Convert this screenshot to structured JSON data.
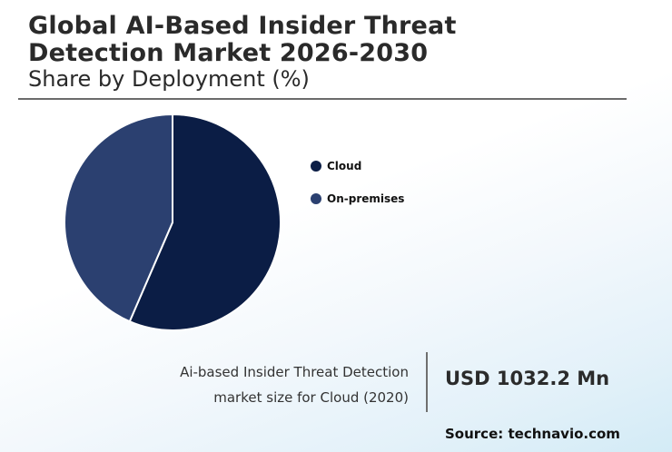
{
  "header": {
    "title_line1": "Global AI-Based Insider Threat",
    "title_line2": "Detection Market 2026-2030",
    "subtitle": "Share by Deployment (%)"
  },
  "chart_data": {
    "type": "pie",
    "title": "Share by Deployment (%)",
    "legend_position": "right",
    "slices": [
      {
        "label": "Cloud",
        "value": 56.5,
        "color": "#0b1d45"
      },
      {
        "label": "On-premises",
        "value": 43.5,
        "color": "#2b4070"
      }
    ]
  },
  "stat": {
    "label_line1": "Ai-based Insider Threat Detection",
    "label_line2": "market size for Cloud (2020)",
    "value": "USD 1032.2 Mn"
  },
  "footer": {
    "source": "Source: technavio.com"
  }
}
